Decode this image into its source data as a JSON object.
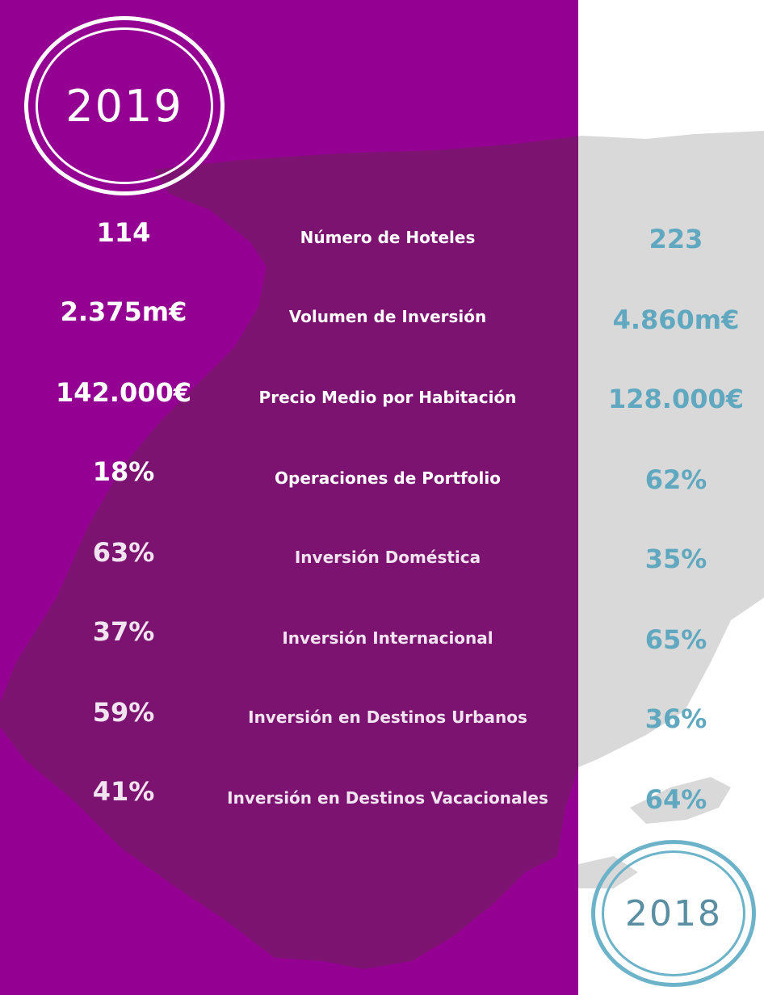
{
  "badges": {
    "left_year": "2019",
    "right_year": "2018"
  },
  "rows": [
    {
      "left": "114",
      "label": "Número de Hoteles",
      "right": "223"
    },
    {
      "left": "2.375m€",
      "label": "Volumen de Inversión",
      "right": "4.860m€"
    },
    {
      "left": "142.000€",
      "label": "Precio Medio por Habitación",
      "right": "128.000€"
    },
    {
      "left": "18%",
      "label": "Operaciones de Portfolio",
      "right": "62%"
    },
    {
      "left": "63%",
      "label": "Inversión Doméstica",
      "right": "35%"
    },
    {
      "left": "37%",
      "label": "Inversión Internacional",
      "right": "65%"
    },
    {
      "left": "59%",
      "label": "Inversión en Destinos Urbanos",
      "right": "36%"
    },
    {
      "left": "41%",
      "label": "Inversión en Destinos Vacacionales",
      "right": "64%"
    }
  ],
  "colors": {
    "left_panel": "#940091",
    "right_panel": "#ffffff",
    "map_overlay": "#7c1370",
    "map_right": "#d9d9d9",
    "right_accent": "#5fa8c0"
  }
}
